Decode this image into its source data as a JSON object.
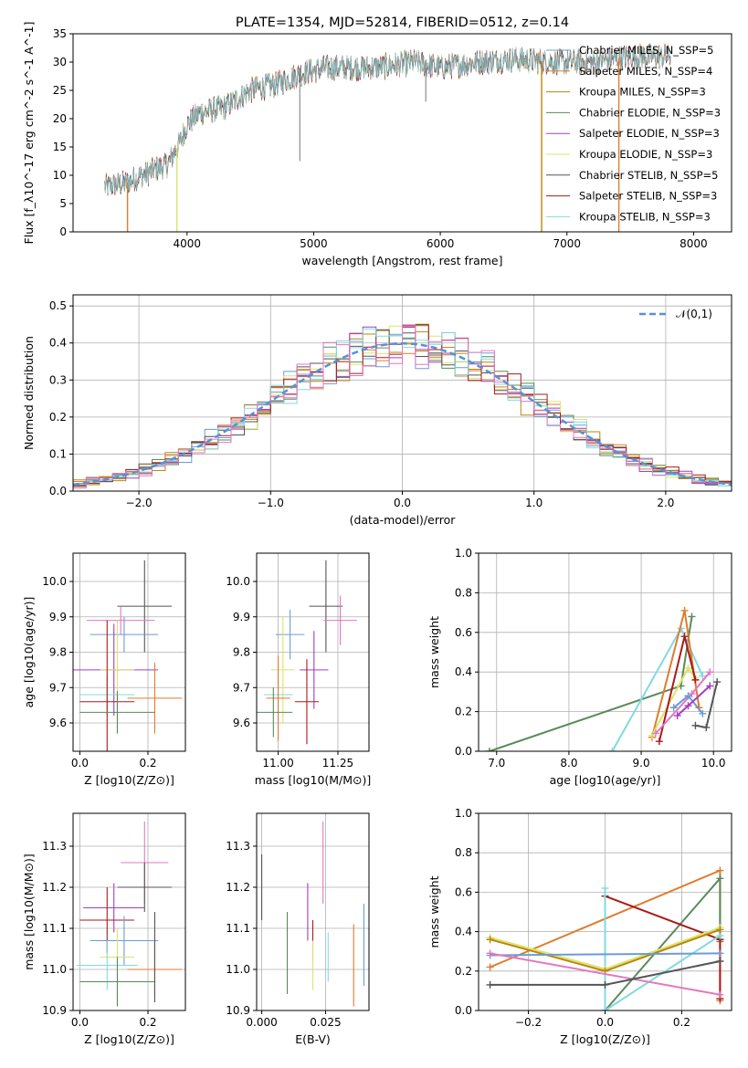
{
  "chart_data": [
    {
      "id": "spectrum",
      "type": "line",
      "title": "PLATE=1354, MJD=52814, FIBERID=0512, z=0.14",
      "xlabel": "wavelength [Angstrom, rest frame]",
      "ylabel": "Flux [f_λ10^-17 erg cm^-2 s^-1 A^-1]",
      "xlim": [
        3100,
        8300
      ],
      "ylim": [
        0,
        35
      ],
      "xticks": [
        4000,
        5000,
        6000,
        7000,
        8000
      ],
      "yticks": [
        0,
        5,
        10,
        15,
        20,
        25,
        30,
        35
      ],
      "grid": false,
      "legend_position": "right",
      "continuum": {
        "x": [
          3350,
          3500,
          3700,
          3850,
          3950,
          4000,
          4100,
          4300,
          4500,
          4700,
          4900,
          5100,
          5300,
          5500,
          5800,
          6000,
          6300,
          6600,
          6900,
          7200,
          7500,
          7800
        ],
        "y": [
          8,
          8.5,
          10.5,
          12,
          16,
          19,
          21,
          22,
          25,
          26,
          28,
          29,
          29,
          29,
          30,
          29,
          30,
          30.5,
          30,
          30,
          31,
          31
        ]
      },
      "series": [
        {
          "name": "Chabrier MILES, N_SSP=5",
          "color": "#6b9bd8"
        },
        {
          "name": "Salpeter MILES, N_SSP=4",
          "color": "#e07b2c"
        },
        {
          "name": "Kroupa MILES, N_SSP=3",
          "color": "#b8860b"
        },
        {
          "name": "Chabrier ELODIE, N_SSP=3",
          "color": "#5a8a5a"
        },
        {
          "name": "Salpeter ELODIE, N_SSP=3",
          "color": "#a23ec2"
        },
        {
          "name": "Kroupa ELODIE, N_SSP=3",
          "color": "#dbe56b"
        },
        {
          "name": "Chabrier STELIB, N_SSP=5",
          "color": "#555555"
        },
        {
          "name": "Salpeter STELIB, N_SSP=3",
          "color": "#aa1a1a"
        },
        {
          "name": "Kroupa STELIB, N_SSP=3",
          "color": "#7fdbe0"
        }
      ],
      "drops": [
        {
          "x": 3530,
          "color": "#e07b2c"
        },
        {
          "x": 3920,
          "color": "#dbe56b"
        },
        {
          "x": 6800,
          "color": "#b8860b"
        },
        {
          "x": 7410,
          "color": "#e07b2c"
        }
      ]
    },
    {
      "id": "residuals",
      "type": "step",
      "xlabel": "(data-model)/error",
      "ylabel": "Normed distribution",
      "xlim": [
        -2.5,
        2.5
      ],
      "ylim": [
        0,
        0.53
      ],
      "xticks": [
        -2,
        -1,
        0,
        1,
        2
      ],
      "yticks": [
        0.0,
        0.1,
        0.2,
        0.3,
        0.4,
        0.5
      ],
      "grid": true,
      "bin_width": 0.1,
      "reference_curve": {
        "name": "𝒩(0,1)",
        "color": "#5b8fd6"
      },
      "legend_position": "top-right",
      "histogram_colors": [
        "#6b9bd8",
        "#e07b2c",
        "#b8860b",
        "#5a8a5a",
        "#a23ec2",
        "#dbe56b",
        "#555555",
        "#aa1a1a",
        "#7fdbe0",
        "#e377c2"
      ]
    },
    {
      "id": "age_vs_Z",
      "type": "errorbar",
      "xlabel": "Z [log10(Z/Z⊙)]",
      "ylabel": "age  [log10(age/yr)]",
      "xlim": [
        -0.02,
        0.31
      ],
      "ylim": [
        9.52,
        10.08
      ],
      "xticks": [
        0.0,
        0.2
      ],
      "yticks": [
        9.6,
        9.7,
        9.8,
        9.9,
        10.0
      ],
      "grid": true,
      "points": [
        {
          "x": 0.19,
          "xerr": 0.08,
          "y": 9.93,
          "yerr": 0.13,
          "color": "#555555"
        },
        {
          "x": 0.12,
          "xerr": 0.1,
          "y": 9.89,
          "yerr": 0.04,
          "color": "#e377c2"
        },
        {
          "x": 0.13,
          "xerr": 0.1,
          "y": 9.85,
          "yerr": 0.05,
          "color": "#6b9bd8"
        },
        {
          "x": 0.1,
          "xerr": 0.13,
          "y": 9.75,
          "yerr": 0.13,
          "color": "#a23ec2"
        },
        {
          "x": 0.11,
          "xerr": 0.05,
          "y": 9.75,
          "yerr": 0.14,
          "color": "#dbe56b"
        },
        {
          "x": 0.08,
          "xerr": 0.08,
          "y": 9.68,
          "yerr": 0.06,
          "color": "#7fdbe0"
        },
        {
          "x": 0.08,
          "xerr": 0.08,
          "y": 9.66,
          "yerr": 0.23,
          "color": "#aa1a1a"
        },
        {
          "x": 0.22,
          "xerr": 0.08,
          "y": 9.67,
          "yerr": 0.1,
          "color": "#e07b2c"
        },
        {
          "x": 0.11,
          "xerr": 0.11,
          "y": 9.63,
          "yerr": 0.06,
          "color": "#5a8a5a"
        }
      ]
    },
    {
      "id": "age_vs_mass",
      "type": "errorbar",
      "xlabel": "mass [log10(M/M⊙)]",
      "ylabel": "",
      "xlim": [
        10.91,
        11.38
      ],
      "ylim": [
        9.52,
        10.08
      ],
      "xticks": [
        11.0,
        11.25
      ],
      "yticks": [
        9.6,
        9.7,
        9.8,
        9.9,
        10.0
      ],
      "grid": true,
      "points": [
        {
          "x": 11.2,
          "xerr": 0.07,
          "y": 9.93,
          "yerr": 0.13,
          "color": "#555555"
        },
        {
          "x": 11.26,
          "xerr": 0.07,
          "y": 9.89,
          "yerr": 0.07,
          "color": "#e377c2"
        },
        {
          "x": 11.05,
          "xerr": 0.06,
          "y": 9.85,
          "yerr": 0.07,
          "color": "#6b9bd8"
        },
        {
          "x": 11.15,
          "xerr": 0.06,
          "y": 9.75,
          "yerr": 0.11,
          "color": "#a23ec2"
        },
        {
          "x": 11.02,
          "xerr": 0.05,
          "y": 9.75,
          "yerr": 0.15,
          "color": "#dbe56b"
        },
        {
          "x": 11.0,
          "xerr": 0.06,
          "y": 9.68,
          "yerr": 0.09,
          "color": "#7fdbe0"
        },
        {
          "x": 11.12,
          "xerr": 0.05,
          "y": 9.66,
          "yerr": 0.12,
          "color": "#aa1a1a"
        },
        {
          "x": 11.0,
          "xerr": 0.05,
          "y": 9.67,
          "yerr": 0.12,
          "color": "#e07b2c"
        },
        {
          "x": 10.98,
          "xerr": 0.08,
          "y": 9.63,
          "yerr": 0.07,
          "color": "#5a8a5a"
        }
      ]
    },
    {
      "id": "weight_vs_age",
      "type": "line",
      "xlabel": "age  [log10(age/yr)]",
      "ylabel": "mass weight",
      "xlim": [
        6.75,
        10.25
      ],
      "ylim": [
        0,
        1.0
      ],
      "xticks": [
        7,
        8,
        9,
        10
      ],
      "yticks": [
        0.0,
        0.2,
        0.4,
        0.6,
        0.8,
        1.0
      ],
      "grid": true,
      "series": [
        {
          "color": "#5a8a5a",
          "x": [
            6.9,
            9.55,
            9.7
          ],
          "y": [
            0.0,
            0.33,
            0.68
          ]
        },
        {
          "color": "#7fdbe0",
          "x": [
            8.6,
            9.55,
            9.85
          ],
          "y": [
            0.0,
            0.62,
            0.38
          ]
        },
        {
          "color": "#e07b2c",
          "x": [
            9.15,
            9.6,
            9.8
          ],
          "y": [
            0.07,
            0.71,
            0.22
          ]
        },
        {
          "color": "#dbe56b",
          "x": [
            9.15,
            9.65,
            9.75
          ],
          "y": [
            0.08,
            0.42,
            0.37
          ]
        },
        {
          "color": "#aa1a1a",
          "x": [
            9.25,
            9.6,
            9.75
          ],
          "y": [
            0.05,
            0.58,
            0.36
          ]
        },
        {
          "color": "#e377c2",
          "x": [
            9.2,
            9.7,
            9.95
          ],
          "y": [
            0.09,
            0.29,
            0.4
          ]
        },
        {
          "color": "#555555",
          "x": [
            9.75,
            9.9,
            10.05
          ],
          "y": [
            0.13,
            0.12,
            0.35
          ]
        },
        {
          "color": "#6b9bd8",
          "x": [
            9.45,
            9.65,
            9.85
          ],
          "y": [
            0.22,
            0.28,
            0.19
          ]
        },
        {
          "color": "#a23ec2",
          "x": [
            9.5,
            9.65,
            9.95
          ],
          "y": [
            0.18,
            0.23,
            0.33
          ]
        }
      ]
    },
    {
      "id": "mass_vs_Z",
      "type": "errorbar",
      "xlabel": "Z [log10(Z/Z⊙)]",
      "ylabel": "mass [log10(M/M⊙)]",
      "xlim": [
        -0.02,
        0.31
      ],
      "ylim": [
        10.9,
        11.38
      ],
      "xticks": [
        0.0,
        0.2
      ],
      "yticks": [
        10.9,
        11.0,
        11.1,
        11.2,
        11.3
      ],
      "grid": true,
      "points": [
        {
          "x": 0.19,
          "xerr": 0.07,
          "y": 11.26,
          "yerr": 0.1,
          "color": "#e377c2"
        },
        {
          "x": 0.19,
          "xerr": 0.08,
          "y": 11.2,
          "yerr": 0.06,
          "color": "#555555"
        },
        {
          "x": 0.1,
          "xerr": 0.09,
          "y": 11.15,
          "yerr": 0.06,
          "color": "#a23ec2"
        },
        {
          "x": 0.08,
          "xerr": 0.08,
          "y": 11.12,
          "yerr": 0.08,
          "color": "#aa1a1a"
        },
        {
          "x": 0.13,
          "xerr": 0.1,
          "y": 11.07,
          "yerr": 0.06,
          "color": "#6b9bd8"
        },
        {
          "x": 0.11,
          "xerr": 0.05,
          "y": 11.03,
          "yerr": 0.07,
          "color": "#dbe56b"
        },
        {
          "x": 0.08,
          "xerr": 0.09,
          "y": 11.01,
          "yerr": 0.06,
          "color": "#7fdbe0"
        },
        {
          "x": 0.22,
          "xerr": 0.08,
          "y": 11.0,
          "yerr": 0.07,
          "color": "#e07b2c"
        },
        {
          "x": 0.11,
          "xerr": 0.11,
          "y": 10.97,
          "yerr": 0.06,
          "color": "#5a8a5a"
        },
        {
          "x": 0.22,
          "xerr": 0.0,
          "y": 11.03,
          "yerr": 0.11,
          "color": "#555555"
        }
      ]
    },
    {
      "id": "mass_vs_ebv",
      "type": "errorbar",
      "xlabel": "E(B-V)",
      "ylabel": "",
      "xlim": [
        -0.002,
        0.042
      ],
      "ylim": [
        10.9,
        11.38
      ],
      "xticks": [
        0.0,
        0.025
      ],
      "yticks": [
        10.9,
        11.0,
        11.1,
        11.2,
        11.3
      ],
      "grid": true,
      "points": [
        {
          "x": 0.0,
          "xerr": 0,
          "y": 11.2,
          "yerr": 0.08,
          "color": "#555555"
        },
        {
          "x": 0.01,
          "xerr": 0,
          "y": 11.04,
          "yerr": 0.1,
          "color": "#5a8a5a"
        },
        {
          "x": 0.018,
          "xerr": 0,
          "y": 11.14,
          "yerr": 0.07,
          "color": "#a23ec2"
        },
        {
          "x": 0.02,
          "xerr": 0,
          "y": 11.07,
          "yerr": 0.05,
          "color": "#aa1a1a"
        },
        {
          "x": 0.02,
          "xerr": 0,
          "y": 11.01,
          "yerr": 0.06,
          "color": "#dbe56b"
        },
        {
          "x": 0.024,
          "xerr": 0,
          "y": 11.26,
          "yerr": 0.1,
          "color": "#e377c2"
        },
        {
          "x": 0.026,
          "xerr": 0,
          "y": 11.03,
          "yerr": 0.06,
          "color": "#7fdbe0"
        },
        {
          "x": 0.036,
          "xerr": 0,
          "y": 11.01,
          "yerr": 0.1,
          "color": "#e07b2c"
        },
        {
          "x": 0.04,
          "xerr": 0,
          "y": 11.06,
          "yerr": 0.1,
          "color": "#6b9bd8"
        }
      ]
    },
    {
      "id": "weight_vs_Z",
      "type": "line",
      "xlabel": "Z [log10(Z/Z⊙)]",
      "ylabel": "mass weight",
      "xlim": [
        -0.33,
        0.33
      ],
      "ylim": [
        0,
        1.0
      ],
      "xticks": [
        -0.2,
        0.0,
        0.2
      ],
      "yticks": [
        0.0,
        0.2,
        0.4,
        0.6,
        0.8,
        1.0
      ],
      "grid": true,
      "series": [
        {
          "color": "#e07b2c",
          "x": [
            -0.3,
            0.3,
            0.3
          ],
          "y": [
            0.22,
            0.71,
            0.05
          ]
        },
        {
          "color": "#5a8a5a",
          "x": [
            0.0,
            0.3,
            0.3
          ],
          "y": [
            0.0,
            0.67,
            0.35
          ]
        },
        {
          "color": "#aa1a1a",
          "x": [
            0.0,
            0.3,
            0.3
          ],
          "y": [
            0.58,
            0.36,
            0.06
          ]
        },
        {
          "color": "#7fdbe0",
          "x": [
            0.0,
            0.0,
            0.3
          ],
          "y": [
            0.62,
            0.0,
            0.38
          ]
        },
        {
          "color": "#dbe56b",
          "x": [
            -0.3,
            0.0,
            0.3
          ],
          "y": [
            0.37,
            0.21,
            0.42
          ]
        },
        {
          "color": "#b8860b",
          "x": [
            -0.3,
            0.0,
            0.3
          ],
          "y": [
            0.36,
            0.2,
            0.41
          ]
        },
        {
          "color": "#6b9bd8",
          "x": [
            -0.3,
            0.3
          ],
          "y": [
            0.28,
            0.29
          ]
        },
        {
          "color": "#e377c2",
          "x": [
            -0.3,
            0.3
          ],
          "y": [
            0.29,
            0.08
          ]
        },
        {
          "color": "#555555",
          "x": [
            -0.3,
            0.0,
            0.3
          ],
          "y": [
            0.13,
            0.13,
            0.25
          ]
        }
      ]
    }
  ]
}
